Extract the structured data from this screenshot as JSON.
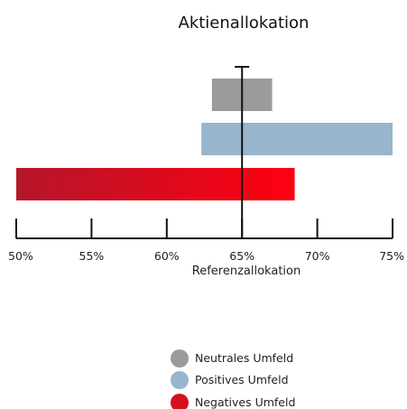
{
  "chart_data": {
    "type": "bar",
    "orientation": "horizontal",
    "title": "Aktienallokation",
    "xlabel": "Referenzallokation",
    "ylabel": "",
    "xlim": [
      50,
      75
    ],
    "ticks": [
      50,
      55,
      60,
      65,
      70,
      75
    ],
    "tick_labels": [
      "50%",
      "55%",
      "60%",
      "65%",
      "70%",
      "75%"
    ],
    "reference_value": 65,
    "grid": false,
    "legend_position": "bottom-center",
    "series": [
      {
        "name": "Neutrales Umfeld",
        "start": 63,
        "end": 67,
        "color": "#9b9b9b"
      },
      {
        "name": "Positives Umfeld",
        "start": 62.3,
        "end": 75,
        "color": "#97b5cc"
      },
      {
        "name": "Negatives Umfeld",
        "start": 50,
        "end": 68.5,
        "color": "#e0101e",
        "gradient_from": "#b5162b",
        "gradient_to": "#ff0010"
      }
    ]
  }
}
